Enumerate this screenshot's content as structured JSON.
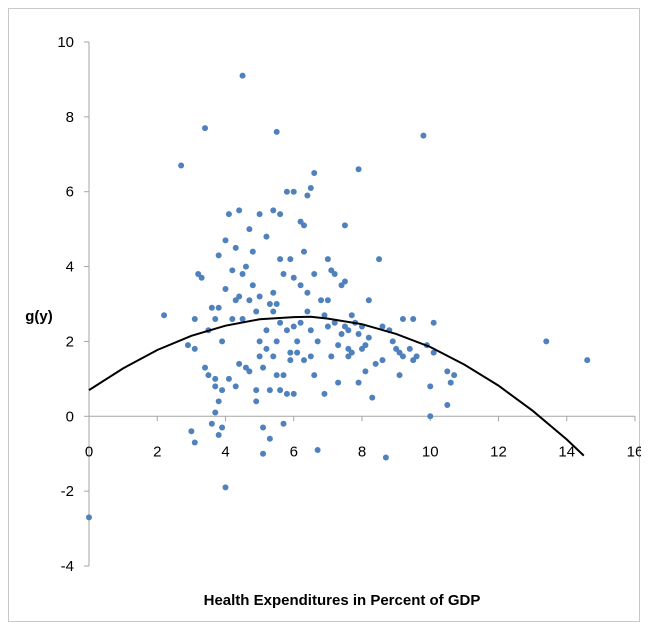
{
  "chart_data": {
    "type": "scatter",
    "title": "",
    "xlabel": "Health Expenditures in Percent of GDP",
    "ylabel": "g(y)",
    "xlim": [
      0,
      16
    ],
    "ylim": [
      -4,
      10
    ],
    "x_ticks": [
      0,
      2,
      4,
      6,
      8,
      10,
      12,
      14,
      16
    ],
    "y_ticks": [
      -4,
      -2,
      0,
      2,
      4,
      6,
      8,
      10
    ],
    "grid": false,
    "legend": "none",
    "marker_color": "#4f81bd",
    "curve_color": "#000000",
    "series": [
      {
        "type": "scatter",
        "points": [
          [
            0.0,
            -2.7
          ],
          [
            2.2,
            2.7
          ],
          [
            2.7,
            6.7
          ],
          [
            2.9,
            1.9
          ],
          [
            3.0,
            -0.4
          ],
          [
            3.1,
            1.8
          ],
          [
            3.1,
            -0.7
          ],
          [
            3.1,
            2.6
          ],
          [
            3.2,
            3.8
          ],
          [
            3.3,
            3.7
          ],
          [
            3.4,
            1.3
          ],
          [
            3.4,
            7.7
          ],
          [
            3.5,
            2.3
          ],
          [
            3.5,
            1.1
          ],
          [
            3.6,
            2.9
          ],
          [
            3.6,
            -0.2
          ],
          [
            3.7,
            2.6
          ],
          [
            3.7,
            0.8
          ],
          [
            3.7,
            1.0
          ],
          [
            3.7,
            0.1
          ],
          [
            3.8,
            0.4
          ],
          [
            3.8,
            4.3
          ],
          [
            3.8,
            2.9
          ],
          [
            3.8,
            -0.5
          ],
          [
            3.9,
            0.7
          ],
          [
            3.9,
            2.0
          ],
          [
            3.9,
            -0.3
          ],
          [
            4.0,
            3.4
          ],
          [
            4.0,
            -1.9
          ],
          [
            4.0,
            4.7
          ],
          [
            4.1,
            1.0
          ],
          [
            4.1,
            5.4
          ],
          [
            4.2,
            3.9
          ],
          [
            4.2,
            2.6
          ],
          [
            4.3,
            3.1
          ],
          [
            4.3,
            4.5
          ],
          [
            4.3,
            0.8
          ],
          [
            4.4,
            5.5
          ],
          [
            4.4,
            3.2
          ],
          [
            4.4,
            1.4
          ],
          [
            4.5,
            9.1
          ],
          [
            4.5,
            3.8
          ],
          [
            4.5,
            2.6
          ],
          [
            4.6,
            1.3
          ],
          [
            4.6,
            4.0
          ],
          [
            4.7,
            3.1
          ],
          [
            4.7,
            1.2
          ],
          [
            4.7,
            5.0
          ],
          [
            4.8,
            4.4
          ],
          [
            4.8,
            3.5
          ],
          [
            4.9,
            2.8
          ],
          [
            4.9,
            0.4
          ],
          [
            4.9,
            0.7
          ],
          [
            5.0,
            1.6
          ],
          [
            5.0,
            3.2
          ],
          [
            5.0,
            2.0
          ],
          [
            5.0,
            5.4
          ],
          [
            5.1,
            -0.3
          ],
          [
            5.1,
            -1.0
          ],
          [
            5.1,
            1.3
          ],
          [
            5.2,
            4.8
          ],
          [
            5.2,
            2.3
          ],
          [
            5.2,
            1.8
          ],
          [
            5.3,
            3.0
          ],
          [
            5.3,
            -0.6
          ],
          [
            5.3,
            0.7
          ],
          [
            5.4,
            5.5
          ],
          [
            5.4,
            3.3
          ],
          [
            5.4,
            2.8
          ],
          [
            5.4,
            1.6
          ],
          [
            5.5,
            1.1
          ],
          [
            5.5,
            3.0
          ],
          [
            5.5,
            2.0
          ],
          [
            5.5,
            7.6
          ],
          [
            5.6,
            0.7
          ],
          [
            5.6,
            5.4
          ],
          [
            5.6,
            4.2
          ],
          [
            5.6,
            2.5
          ],
          [
            5.7,
            1.1
          ],
          [
            5.7,
            -0.2
          ],
          [
            5.7,
            3.8
          ],
          [
            5.8,
            6.0
          ],
          [
            5.8,
            0.6
          ],
          [
            5.8,
            2.3
          ],
          [
            5.9,
            4.2
          ],
          [
            5.9,
            1.7
          ],
          [
            5.9,
            1.5
          ],
          [
            6.0,
            6.0
          ],
          [
            6.0,
            3.7
          ],
          [
            6.0,
            2.4
          ],
          [
            6.0,
            0.6
          ],
          [
            6.1,
            2.0
          ],
          [
            6.1,
            1.7
          ],
          [
            6.2,
            5.2
          ],
          [
            6.2,
            3.5
          ],
          [
            6.2,
            2.5
          ],
          [
            6.3,
            4.4
          ],
          [
            6.3,
            1.5
          ],
          [
            6.3,
            5.1
          ],
          [
            6.4,
            5.9
          ],
          [
            6.4,
            3.3
          ],
          [
            6.4,
            2.8
          ],
          [
            6.5,
            6.1
          ],
          [
            6.5,
            2.3
          ],
          [
            6.5,
            1.6
          ],
          [
            6.6,
            6.5
          ],
          [
            6.6,
            3.8
          ],
          [
            6.6,
            1.1
          ],
          [
            6.7,
            -0.9
          ],
          [
            6.7,
            2.0
          ],
          [
            6.8,
            3.1
          ],
          [
            6.9,
            0.6
          ],
          [
            6.9,
            2.7
          ],
          [
            7.0,
            4.2
          ],
          [
            7.0,
            3.1
          ],
          [
            7.0,
            2.4
          ],
          [
            7.1,
            3.9
          ],
          [
            7.1,
            1.6
          ],
          [
            7.2,
            3.8
          ],
          [
            7.2,
            2.5
          ],
          [
            7.3,
            0.9
          ],
          [
            7.3,
            1.9
          ],
          [
            7.4,
            3.5
          ],
          [
            7.4,
            2.2
          ],
          [
            7.5,
            5.1
          ],
          [
            7.5,
            3.6
          ],
          [
            7.5,
            2.4
          ],
          [
            7.6,
            2.3
          ],
          [
            7.6,
            1.8
          ],
          [
            7.6,
            1.6
          ],
          [
            7.7,
            2.7
          ],
          [
            7.7,
            1.7
          ],
          [
            7.8,
            2.5
          ],
          [
            7.9,
            6.6
          ],
          [
            7.9,
            0.9
          ],
          [
            7.9,
            2.2
          ],
          [
            8.0,
            1.8
          ],
          [
            8.0,
            2.4
          ],
          [
            8.1,
            1.9
          ],
          [
            8.1,
            1.2
          ],
          [
            8.2,
            3.1
          ],
          [
            8.2,
            2.1
          ],
          [
            8.3,
            0.5
          ],
          [
            8.4,
            1.4
          ],
          [
            8.5,
            4.2
          ],
          [
            8.6,
            2.4
          ],
          [
            8.6,
            1.5
          ],
          [
            8.7,
            -1.1
          ],
          [
            8.8,
            2.3
          ],
          [
            8.9,
            2.0
          ],
          [
            9.0,
            1.8
          ],
          [
            9.1,
            1.7
          ],
          [
            9.1,
            1.1
          ],
          [
            9.2,
            2.6
          ],
          [
            9.2,
            1.6
          ],
          [
            9.4,
            1.8
          ],
          [
            9.5,
            1.5
          ],
          [
            9.5,
            2.6
          ],
          [
            9.6,
            1.6
          ],
          [
            9.8,
            7.5
          ],
          [
            9.9,
            1.9
          ],
          [
            10.0,
            0.0
          ],
          [
            10.0,
            0.8
          ],
          [
            10.1,
            2.5
          ],
          [
            10.1,
            1.7
          ],
          [
            10.5,
            0.3
          ],
          [
            10.5,
            1.2
          ],
          [
            10.6,
            0.9
          ],
          [
            10.7,
            1.1
          ],
          [
            13.4,
            2.0
          ],
          [
            14.6,
            1.5
          ]
        ]
      },
      {
        "type": "line",
        "curve": "fitted quadratic",
        "points": [
          [
            0.0,
            0.7
          ],
          [
            1.0,
            1.28
          ],
          [
            2.0,
            1.77
          ],
          [
            3.0,
            2.15
          ],
          [
            4.0,
            2.42
          ],
          [
            5.0,
            2.59
          ],
          [
            6.0,
            2.65
          ],
          [
            6.5,
            2.66
          ],
          [
            7.0,
            2.61
          ],
          [
            8.0,
            2.46
          ],
          [
            9.0,
            2.2
          ],
          [
            10.0,
            1.85
          ],
          [
            11.0,
            1.38
          ],
          [
            12.0,
            0.82
          ],
          [
            13.0,
            0.15
          ],
          [
            14.0,
            -0.62
          ],
          [
            14.5,
            -1.05
          ]
        ]
      }
    ]
  }
}
